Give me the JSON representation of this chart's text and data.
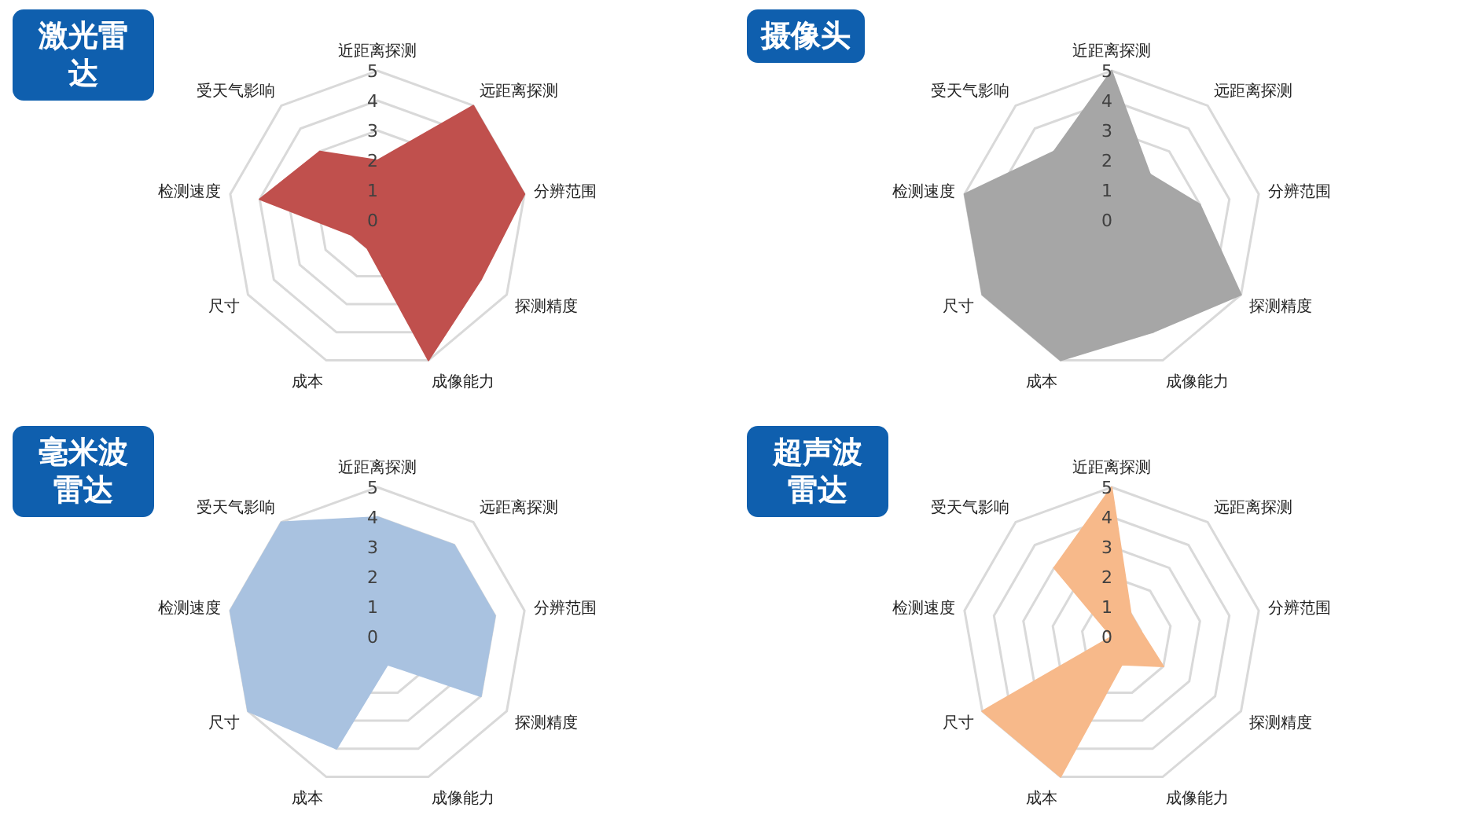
{
  "chart_data": [
    {
      "type": "radar",
      "title": "激光雷达",
      "categories": [
        "近距离探测",
        "远距离探测",
        "分辨范围",
        "探测精度",
        "成像能力",
        "成本",
        "尺寸",
        "检测速度",
        "受天气影响"
      ],
      "ylim": [
        0,
        5
      ],
      "yticks": [
        0,
        1,
        2,
        3,
        4,
        5
      ],
      "grid": true,
      "series": [
        {
          "color": "#c0504d",
          "values": [
            2,
            5,
            5,
            4,
            5,
            1,
            1,
            4,
            3
          ]
        }
      ]
    },
    {
      "type": "radar",
      "title": "摄像头",
      "categories": [
        "近距离探测",
        "远距离探测",
        "分辨范围",
        "探测精度",
        "成像能力",
        "成本",
        "尺寸",
        "检测速度",
        "受天气影响"
      ],
      "ylim": [
        0,
        5
      ],
      "yticks": [
        0,
        1,
        2,
        3,
        4,
        5
      ],
      "grid": true,
      "series": [
        {
          "color": "#a6a6a6",
          "values": [
            5,
            2,
            3,
            5,
            4,
            5,
            5,
            5,
            3
          ]
        }
      ]
    },
    {
      "type": "radar",
      "title": "毫米波雷达",
      "categories": [
        "近距离探测",
        "远距离探测",
        "分辨范围",
        "探测精度",
        "成像能力",
        "成本",
        "尺寸",
        "检测速度",
        "受天气影响"
      ],
      "ylim": [
        0,
        5
      ],
      "yticks": [
        0,
        1,
        2,
        3,
        4,
        5
      ],
      "grid": true,
      "series": [
        {
          "color": "#a9c2e0",
          "values": [
            4,
            4,
            4,
            4,
            1,
            4,
            5,
            5,
            5
          ]
        }
      ]
    },
    {
      "type": "radar",
      "title": "超声波雷达",
      "categories": [
        "近距离探测",
        "远距离探测",
        "分辨范围",
        "探测精度",
        "成像能力",
        "成本",
        "尺寸",
        "检测速度",
        "受天气影响"
      ],
      "ylim": [
        0,
        5
      ],
      "yticks": [
        0,
        1,
        2,
        3,
        4,
        5
      ],
      "grid": true,
      "series": [
        {
          "color": "#f7b98a",
          "values": [
            5,
            1,
            1,
            2,
            1,
            5,
            5,
            0,
            3
          ]
        }
      ]
    }
  ]
}
